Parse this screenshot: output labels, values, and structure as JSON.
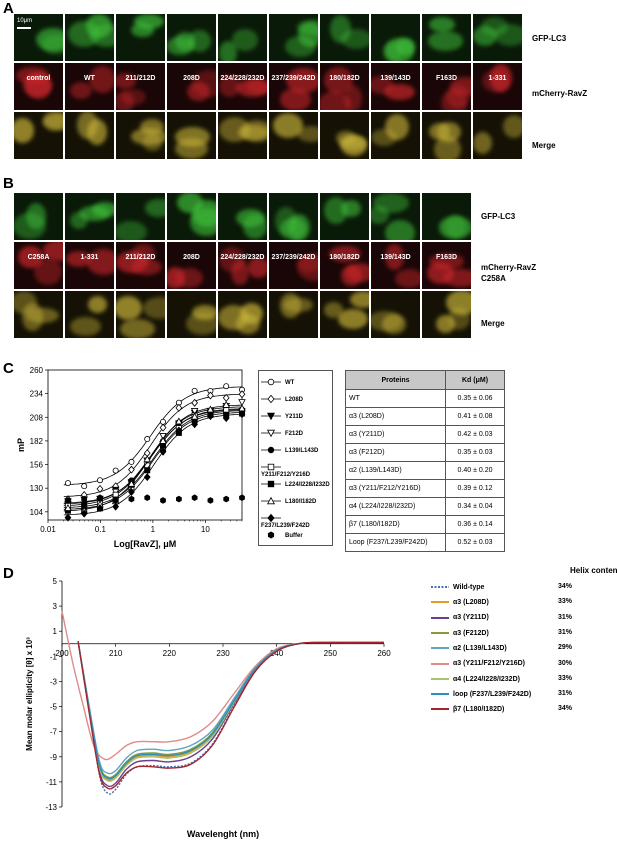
{
  "panels": {
    "A": {
      "letter": "A",
      "scale_bar": "10μm",
      "columns": [
        "control",
        "WT",
        "211/212D",
        "208D",
        "224/228/232D",
        "237/239/242D",
        "180/182D",
        "139/143D",
        "F163D",
        "1-331"
      ],
      "rows": [
        "GFP-LC3",
        "mCherry-RavZ",
        "Merge"
      ]
    },
    "B": {
      "letter": "B",
      "columns": [
        "C258A",
        "1-331",
        "211/212D",
        "208D",
        "224/228/232D",
        "237/239/242D",
        "180/182D",
        "139/143D",
        "F163D"
      ],
      "rows": [
        "GFP-LC3",
        "mCherry-RavZ\nC258A",
        "Merge"
      ]
    },
    "C": {
      "letter": "C"
    },
    "D": {
      "letter": "D"
    }
  },
  "fp_chart": {
    "chart_data": {
      "type": "scatter",
      "ylabel": "mP",
      "xlabel": "Log[RavZ], μM",
      "x_scale": "log",
      "xlim": [
        0.01,
        50
      ],
      "ylim": [
        95,
        260
      ],
      "y_ticks": [
        104,
        130,
        156,
        182,
        208,
        234,
        260
      ],
      "x_ticks": [
        "0.01",
        "0.1",
        "1",
        "10"
      ],
      "x": [
        0.024,
        0.049,
        0.098,
        0.195,
        0.39,
        0.78,
        1.56,
        3.13,
        6.25,
        12.5,
        25,
        50
      ],
      "series": [
        {
          "name": "WT",
          "marker": "circle-open",
          "bottom": 133,
          "top": 242,
          "ec50": 0.9
        },
        {
          "name": "L208D",
          "marker": "diamond-open",
          "bottom": 120,
          "top": 234,
          "ec50": 0.9
        },
        {
          "name": "Y211D",
          "marker": "tri-down-filled",
          "bottom": 113,
          "top": 218,
          "ec50": 0.95
        },
        {
          "name": "F212D",
          "marker": "tri-down-open",
          "bottom": 112,
          "top": 222,
          "ec50": 0.95
        },
        {
          "name": "L139/L143D",
          "marker": "circle-filled",
          "bottom": 110,
          "top": 217,
          "ec50": 0.9
        },
        {
          "name": "Y211/F212/Y216D",
          "marker": "square-open",
          "bottom": 108,
          "top": 216,
          "ec50": 1.0
        },
        {
          "name": "L224/I228/I232D",
          "marker": "square-filled",
          "bottom": 106,
          "top": 214,
          "ec50": 1.0
        },
        {
          "name": "L180/I182D",
          "marker": "tri-up-open",
          "bottom": 104,
          "top": 220,
          "ec50": 0.85
        },
        {
          "name": "F237/L239/F242D",
          "marker": "diamond-filled",
          "bottom": 100,
          "top": 212,
          "ec50": 1.05
        },
        {
          "name": "Buffer",
          "marker": "hex-filled",
          "flat": 118
        }
      ]
    }
  },
  "kd_table": {
    "headers": [
      "Proteins",
      "Kd (μM)"
    ],
    "rows": [
      [
        "WT",
        "0.35 ± 0.06"
      ],
      [
        "α3 (L208D)",
        "0.41 ± 0.08"
      ],
      [
        "α3 (Y211D)",
        "0.42 ± 0.03"
      ],
      [
        "α3 (F212D)",
        "0.35 ± 0.03"
      ],
      [
        "α2 (L139/L143D)",
        "0.40 ± 0.20"
      ],
      [
        "α3 (Y211/F212/Y216D)",
        "0.39 ± 0.12"
      ],
      [
        "α4 (L224/I228/I232D)",
        "0.34 ± 0.04"
      ],
      [
        "β7 (L180/I182D)",
        "0.36 ± 0.14"
      ],
      [
        "Loop (F237/L239/F242D)",
        "0.52 ± 0.03"
      ]
    ]
  },
  "cd_chart": {
    "chart_data": {
      "type": "line",
      "ylabel": "Mean molar ellipticity [θ] x 10³",
      "xlabel": "Wavelenght (nm)",
      "xlim": [
        200,
        260
      ],
      "ylim": [
        -13,
        5
      ],
      "x_ticks": [
        200,
        210,
        220,
        230,
        240,
        250,
        260
      ],
      "y_ticks": [
        5,
        3,
        1,
        -1,
        -3,
        -5,
        -7,
        -9,
        -11,
        -13
      ],
      "legend_title": "Helix content",
      "series": [
        {
          "name": "Wild-type",
          "helix": "34%",
          "color": "#4a6fb5",
          "dashed": true,
          "points": [
            [
              203,
              0.2
            ],
            [
              205,
              -5
            ],
            [
              207,
              -10.5
            ],
            [
              208.5,
              -11.9
            ],
            [
              210,
              -11.6
            ],
            [
              212,
              -10.4
            ],
            [
              214,
              -9.8
            ],
            [
              217,
              -9.7
            ],
            [
              220,
              -9.8
            ],
            [
              224,
              -9.5
            ],
            [
              228,
              -8
            ],
            [
              232,
              -5
            ],
            [
              236,
              -2.2
            ],
            [
              240,
              -0.6
            ],
            [
              244,
              0
            ],
            [
              248,
              0.1
            ],
            [
              260,
              0.1
            ]
          ]
        },
        {
          "name": "α3 (L208D)",
          "helix": "33%",
          "color": "#e39b2a",
          "points": [
            [
              203,
              0.2
            ],
            [
              205,
              -5
            ],
            [
              207,
              -9.8
            ],
            [
              208.5,
              -10.8
            ],
            [
              210,
              -10.6
            ],
            [
              212,
              -9.6
            ],
            [
              214,
              -9.0
            ],
            [
              217,
              -8.9
            ],
            [
              220,
              -9.0
            ],
            [
              224,
              -8.6
            ],
            [
              228,
              -7.3
            ],
            [
              232,
              -4.6
            ],
            [
              236,
              -2.0
            ],
            [
              240,
              -0.5
            ],
            [
              244,
              0
            ],
            [
              248,
              0.1
            ],
            [
              260,
              0.1
            ]
          ]
        },
        {
          "name": "α3 (Y211D)",
          "helix": "31%",
          "color": "#6b3e8f",
          "points": [
            [
              203,
              0.2
            ],
            [
              205,
              -5.2
            ],
            [
              207,
              -10.2
            ],
            [
              208.5,
              -11.3
            ],
            [
              210,
              -11.1
            ],
            [
              212,
              -10.0
            ],
            [
              214,
              -9.4
            ],
            [
              217,
              -9.3
            ],
            [
              220,
              -9.4
            ],
            [
              224,
              -9.0
            ],
            [
              228,
              -7.6
            ],
            [
              232,
              -4.8
            ],
            [
              236,
              -2.1
            ],
            [
              240,
              -0.5
            ],
            [
              244,
              0
            ],
            [
              248,
              0.1
            ],
            [
              260,
              0.1
            ]
          ]
        },
        {
          "name": "α3 (F212D)",
          "helix": "31%",
          "color": "#8a9a3c",
          "points": [
            [
              203,
              0.2
            ],
            [
              205,
              -5
            ],
            [
              207,
              -9.6
            ],
            [
              208.5,
              -10.6
            ],
            [
              210,
              -10.4
            ],
            [
              212,
              -9.4
            ],
            [
              214,
              -8.8
            ],
            [
              217,
              -8.7
            ],
            [
              220,
              -8.8
            ],
            [
              224,
              -8.4
            ],
            [
              228,
              -7.1
            ],
            [
              232,
              -4.5
            ],
            [
              236,
              -2.0
            ],
            [
              240,
              -0.5
            ],
            [
              244,
              0
            ],
            [
              248,
              0.1
            ],
            [
              260,
              0.1
            ]
          ]
        },
        {
          "name": "α2 (L139/L143D)",
          "helix": "29%",
          "color": "#5fa6bf",
          "points": [
            [
              203,
              0.2
            ],
            [
              205,
              -4.8
            ],
            [
              207,
              -9.4
            ],
            [
              208.5,
              -10.3
            ],
            [
              210,
              -10.1
            ],
            [
              212,
              -9.1
            ],
            [
              214,
              -8.5
            ],
            [
              217,
              -8.4
            ],
            [
              220,
              -8.5
            ],
            [
              224,
              -8.1
            ],
            [
              228,
              -6.9
            ],
            [
              232,
              -4.4
            ],
            [
              236,
              -1.9
            ],
            [
              240,
              -0.5
            ],
            [
              244,
              0
            ],
            [
              248,
              0.1
            ],
            [
              260,
              0.1
            ]
          ]
        },
        {
          "name": "α3 (Y211/F212/Y216D)",
          "helix": "30%",
          "color": "#e08a8a",
          "points": [
            [
              200,
              2.6
            ],
            [
              202,
              -1.5
            ],
            [
              204,
              -5
            ],
            [
              206,
              -8.2
            ],
            [
              208,
              -9.2
            ],
            [
              210,
              -8.8
            ],
            [
              212,
              -8.1
            ],
            [
              214,
              -7.8
            ],
            [
              217,
              -7.8
            ],
            [
              220,
              -7.8
            ],
            [
              224,
              -7.4
            ],
            [
              228,
              -6.2
            ],
            [
              232,
              -4.0
            ],
            [
              236,
              -1.8
            ],
            [
              240,
              -0.4
            ],
            [
              244,
              0
            ],
            [
              248,
              0.1
            ],
            [
              260,
              0.1
            ]
          ]
        },
        {
          "name": "α4 (L224/I228/I232D)",
          "helix": "33%",
          "color": "#a8c46a",
          "points": [
            [
              203,
              0.2
            ],
            [
              205,
              -5
            ],
            [
              207,
              -9.9
            ],
            [
              208.5,
              -10.9
            ],
            [
              210,
              -10.7
            ],
            [
              212,
              -9.7
            ],
            [
              214,
              -9.1
            ],
            [
              217,
              -9.0
            ],
            [
              220,
              -9.1
            ],
            [
              224,
              -8.7
            ],
            [
              228,
              -7.4
            ],
            [
              232,
              -4.7
            ],
            [
              236,
              -2.0
            ],
            [
              240,
              -0.5
            ],
            [
              244,
              0
            ],
            [
              248,
              0.1
            ],
            [
              260,
              0.1
            ]
          ]
        },
        {
          "name": "loop (F237/L239/F242D)",
          "helix": "31%",
          "color": "#2a8fbf",
          "points": [
            [
              203,
              0.2
            ],
            [
              205,
              -5
            ],
            [
              207,
              -9.7
            ],
            [
              208.5,
              -10.7
            ],
            [
              210,
              -10.5
            ],
            [
              212,
              -9.5
            ],
            [
              214,
              -8.9
            ],
            [
              217,
              -8.8
            ],
            [
              220,
              -8.9
            ],
            [
              224,
              -8.5
            ],
            [
              228,
              -7.2
            ],
            [
              232,
              -4.6
            ],
            [
              236,
              -2.0
            ],
            [
              240,
              -0.5
            ],
            [
              244,
              0
            ],
            [
              248,
              0.1
            ],
            [
              260,
              0.1
            ]
          ]
        },
        {
          "name": "β7 (L180/I182D)",
          "helix": "34%",
          "color": "#a3262e",
          "points": [
            [
              203,
              0.2
            ],
            [
              205,
              -5.3
            ],
            [
              207,
              -10.4
            ],
            [
              208.5,
              -11.5
            ],
            [
              210,
              -11.3
            ],
            [
              212,
              -10.3
            ],
            [
              214,
              -9.8
            ],
            [
              217,
              -9.8
            ],
            [
              220,
              -9.9
            ],
            [
              224,
              -9.6
            ],
            [
              228,
              -8.1
            ],
            [
              232,
              -5.1
            ],
            [
              236,
              -2.2
            ],
            [
              240,
              -0.6
            ],
            [
              244,
              0
            ],
            [
              248,
              0.1
            ],
            [
              260,
              0.1
            ]
          ]
        }
      ]
    }
  }
}
